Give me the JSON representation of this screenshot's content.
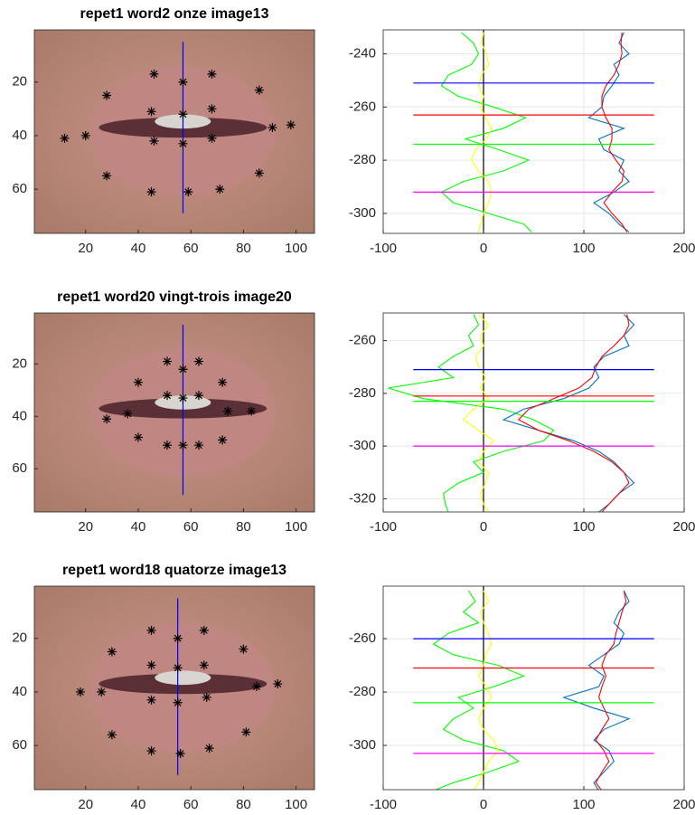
{
  "chart_data": [
    {
      "type": "scatter",
      "title": "repet1  word2 onze  image13",
      "xlim": [
        0.5,
        107
      ],
      "ylim": [
        0.5,
        76.5
      ],
      "y_reversed": true,
      "xticks": [
        20,
        40,
        60,
        80,
        100
      ],
      "yticks": [
        20,
        40,
        60
      ],
      "marker_color": "#000000",
      "x": [
        46,
        57,
        68,
        28,
        86,
        45,
        57,
        68,
        12,
        20,
        46,
        57,
        68,
        91,
        98,
        28,
        86,
        45,
        59,
        71
      ],
      "y": [
        17,
        20,
        17,
        25,
        23,
        31,
        32,
        30,
        41,
        40,
        42,
        43,
        41,
        37,
        36,
        55,
        54,
        61,
        61,
        60
      ],
      "vline": {
        "x": 57,
        "y": [
          5,
          69
        ],
        "color": "#0000ff"
      }
    },
    {
      "type": "line",
      "xlim": [
        -100,
        200
      ],
      "ylim": [
        -307.5,
        -231
      ],
      "xticks": [
        -100,
        0,
        100,
        200
      ],
      "yticks": [
        -240,
        -260,
        -280,
        -300
      ],
      "grid": true,
      "y": [
        -232,
        -236,
        -240,
        -244,
        -248,
        -252,
        -256,
        -260,
        -264,
        -268,
        -272,
        -276,
        -280,
        -284,
        -288,
        -292,
        -296,
        -300,
        -304,
        -307
      ],
      "series": [
        {
          "color": "#00ff00",
          "values": [
            -22,
            -10,
            -5,
            -12,
            -35,
            -42,
            -25,
            10,
            42,
            20,
            -18,
            15,
            45,
            20,
            -20,
            -42,
            -30,
            5,
            40,
            48
          ]
        },
        {
          "color": "#ffff00",
          "values": [
            0,
            -2,
            3,
            5,
            -2,
            -5,
            0,
            -3,
            2,
            8,
            3,
            -8,
            -12,
            -5,
            5,
            8,
            5,
            0,
            -3,
            -5
          ]
        },
        {
          "color": "#0072bd",
          "values": [
            140,
            135,
            145,
            130,
            135,
            128,
            120,
            118,
            105,
            140,
            115,
            120,
            140,
            135,
            145,
            130,
            110,
            125,
            135,
            145
          ]
        },
        {
          "color": "#ff0000",
          "values": [
            138,
            137,
            138,
            135,
            130,
            122,
            118,
            118,
            122,
            128,
            128,
            125,
            132,
            140,
            138,
            128,
            120,
            128,
            138,
            143
          ]
        }
      ],
      "hlines": [
        {
          "color": "#0000ff",
          "value": -251
        },
        {
          "color": "#ff0000",
          "value": -263
        },
        {
          "color": "#00ff00",
          "value": -274
        },
        {
          "color": "#ff00ff",
          "value": -292
        }
      ],
      "hline_span": [
        -70,
        170
      ],
      "vline": {
        "x": 0,
        "color": "#000000"
      }
    },
    {
      "type": "scatter",
      "title": "repet1  word20 vingt-trois  image20",
      "xlim": [
        0.5,
        107
      ],
      "ylim": [
        0.5,
        76.5
      ],
      "y_reversed": true,
      "xticks": [
        20,
        40,
        60,
        80,
        100
      ],
      "yticks": [
        20,
        40,
        60
      ],
      "marker_color": "#000000",
      "x": [
        51,
        57,
        63,
        40,
        72,
        51,
        57,
        63,
        28,
        36,
        74,
        83,
        40,
        72,
        51,
        57,
        63
      ],
      "y": [
        19,
        22,
        19,
        27,
        27,
        32,
        33,
        32,
        41,
        39,
        38,
        38,
        48,
        49,
        51,
        51,
        51
      ],
      "vline": {
        "x": 57,
        "y": [
          5,
          70
        ],
        "color": "#0000ff"
      }
    },
    {
      "type": "line",
      "xlim": [
        -100,
        200
      ],
      "ylim": [
        -325,
        -249.5
      ],
      "xticks": [
        -100,
        0,
        100,
        200
      ],
      "yticks": [
        -260,
        -280,
        -300,
        -320
      ],
      "grid": true,
      "y": [
        -250,
        -254,
        -258,
        -262,
        -266,
        -270,
        -274,
        -278,
        -282,
        -286,
        -290,
        -294,
        -298,
        -302,
        -306,
        -310,
        -314,
        -318,
        -322,
        -325
      ],
      "series": [
        {
          "color": "#00ff00",
          "values": [
            -10,
            -5,
            -15,
            -10,
            -30,
            -45,
            -30,
            -95,
            -60,
            20,
            50,
            70,
            60,
            20,
            -10,
            0,
            -25,
            -40,
            -38,
            -35
          ]
        },
        {
          "color": "#ffff00",
          "values": [
            -5,
            5,
            -3,
            0,
            -8,
            -5,
            2,
            -3,
            5,
            -10,
            -20,
            -5,
            10,
            0,
            -5,
            5,
            2,
            -3,
            0,
            5
          ]
        },
        {
          "color": "#0072bd",
          "values": [
            140,
            150,
            140,
            145,
            120,
            110,
            115,
            105,
            80,
            40,
            20,
            55,
            90,
            115,
            130,
            140,
            150,
            135,
            125,
            115
          ]
        },
        {
          "color": "#ff0000",
          "values": [
            143,
            145,
            140,
            130,
            118,
            112,
            108,
            95,
            70,
            45,
            35,
            55,
            85,
            110,
            128,
            140,
            145,
            135,
            125,
            118
          ]
        }
      ],
      "hlines": [
        {
          "color": "#0000ff",
          "value": -271
        },
        {
          "color": "#ff0000",
          "value": -281
        },
        {
          "color": "#00ff00",
          "value": -283
        },
        {
          "color": "#ff00ff",
          "value": -300
        }
      ],
      "hline_span": [
        -70,
        170
      ],
      "vline": {
        "x": 0,
        "color": "#000000"
      }
    },
    {
      "type": "scatter",
      "title": "repet1  word18 quatorze  image13",
      "xlim": [
        0.5,
        107
      ],
      "ylim": [
        0.5,
        76.5
      ],
      "y_reversed": true,
      "xticks": [
        20,
        40,
        60,
        80,
        100
      ],
      "yticks": [
        20,
        40,
        60
      ],
      "marker_color": "#000000",
      "x": [
        45,
        55,
        65,
        30,
        80,
        45,
        55,
        65,
        18,
        26,
        85,
        93,
        45,
        55,
        66,
        30,
        81,
        45,
        56,
        67
      ],
      "y": [
        17,
        20,
        17,
        25,
        24,
        30,
        31,
        30,
        40,
        40,
        38,
        37,
        43,
        44,
        42,
        56,
        55,
        62,
        63,
        61
      ],
      "vline": {
        "x": 55,
        "y": [
          5,
          71
        ],
        "color": "#0000ff"
      }
    },
    {
      "type": "line",
      "xlim": [
        -100,
        200
      ],
      "ylim": [
        -316.6,
        -240.3
      ],
      "xticks": [
        -100,
        0,
        100,
        200
      ],
      "yticks": [
        -260,
        -280,
        -300
      ],
      "grid": true,
      "y": [
        -242,
        -246,
        -250,
        -254,
        -258,
        -262,
        -266,
        -270,
        -274,
        -278,
        -282,
        -286,
        -290,
        -294,
        -298,
        -302,
        -306,
        -310,
        -314,
        -317
      ],
      "series": [
        {
          "color": "#00ff00",
          "values": [
            -15,
            -8,
            -20,
            -5,
            -35,
            -50,
            -30,
            15,
            40,
            10,
            -25,
            -10,
            -30,
            -40,
            -20,
            20,
            35,
            5,
            -30,
            -50
          ]
        },
        {
          "color": "#ffff00",
          "values": [
            0,
            5,
            -3,
            0,
            5,
            8,
            2,
            0,
            -5,
            3,
            8,
            0,
            -5,
            0,
            10,
            15,
            5,
            0,
            -5,
            -10
          ]
        },
        {
          "color": "#0072bd",
          "values": [
            140,
            145,
            135,
            130,
            140,
            135,
            120,
            105,
            120,
            115,
            80,
            110,
            145,
            120,
            110,
            125,
            130,
            120,
            110,
            115
          ]
        },
        {
          "color": "#ff0000",
          "values": [
            140,
            142,
            138,
            135,
            132,
            130,
            122,
            118,
            122,
            118,
            115,
            120,
            125,
            118,
            112,
            120,
            125,
            118,
            112,
            118
          ]
        }
      ],
      "hlines": [
        {
          "color": "#0000ff",
          "value": -260
        },
        {
          "color": "#ff0000",
          "value": -271
        },
        {
          "color": "#00ff00",
          "value": -284
        },
        {
          "color": "#ff00ff",
          "value": -303
        }
      ],
      "hline_span": [
        -70,
        170
      ],
      "vline": {
        "x": 0,
        "color": "#000000"
      }
    }
  ]
}
